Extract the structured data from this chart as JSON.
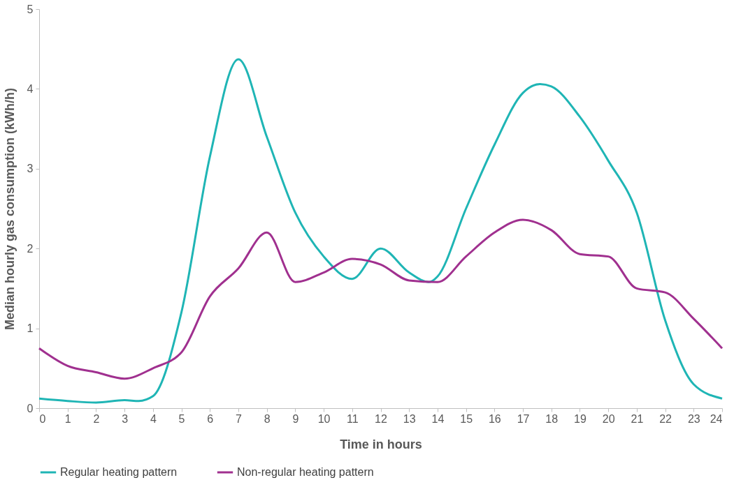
{
  "chart_data": {
    "type": "line",
    "xlabel": "Time in hours",
    "ylabel": "Median hourly gas consumption (kWh/h)",
    "xlim": [
      0,
      24
    ],
    "xticks": [
      0,
      1,
      2,
      3,
      4,
      5,
      6,
      7,
      8,
      9,
      10,
      11,
      12,
      13,
      14,
      15,
      16,
      17,
      18,
      19,
      20,
      21,
      22,
      23,
      24
    ],
    "ylim": [
      0,
      5
    ],
    "yticks": [
      0,
      1,
      2,
      3,
      4,
      5
    ],
    "grid": false,
    "legend": "bottom",
    "marker": "none",
    "line_style": "solid",
    "series": [
      {
        "name": "Regular heating pattern",
        "color": "#1fb5b5",
        "x": [
          0,
          1,
          2,
          3,
          3.5,
          4,
          5,
          6,
          7,
          8,
          9,
          10,
          11,
          12,
          13,
          13.7,
          14,
          15,
          16,
          17,
          17.6,
          18,
          19,
          20,
          21,
          22,
          23,
          24
        ],
        "values": [
          0.12,
          0.09,
          0.07,
          0.1,
          0.09,
          0.15,
          1.2,
          3.15,
          4.37,
          3.4,
          2.45,
          1.9,
          1.62,
          2.0,
          1.7,
          1.58,
          1.65,
          2.5,
          3.3,
          3.95,
          4.06,
          4.03,
          3.65,
          3.1,
          2.45,
          1.1,
          0.3,
          0.12
        ]
      },
      {
        "name": "Non-regular heating pattern",
        "color": "#a0308f",
        "x": [
          0,
          1,
          2,
          3,
          4,
          5,
          6,
          7,
          8,
          9,
          10,
          11,
          12,
          13,
          14,
          15,
          16,
          17,
          18,
          19,
          20,
          21,
          22,
          23,
          24
        ],
        "values": [
          0.75,
          0.53,
          0.45,
          0.37,
          0.5,
          0.7,
          1.4,
          1.75,
          2.2,
          1.58,
          1.7,
          1.87,
          1.8,
          1.6,
          1.58,
          1.9,
          2.2,
          2.36,
          2.23,
          1.93,
          1.9,
          1.5,
          1.45,
          1.12,
          0.75
        ]
      }
    ]
  }
}
